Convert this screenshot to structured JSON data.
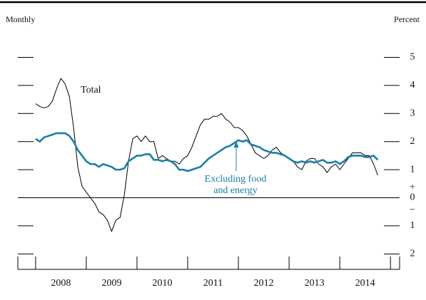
{
  "chart_data": {
    "type": "line",
    "axis_label_left": "Monthly",
    "axis_label_right": "Percent",
    "categories": [
      "2008",
      "2009",
      "2010",
      "2011",
      "2012",
      "2013",
      "2014"
    ],
    "xlim": [
      2007.65,
      2015.18
    ],
    "xticks": [
      2008,
      2009,
      2010,
      2011,
      2012,
      2013,
      2014,
      2015
    ],
    "ylim": [
      -2.55,
      5.5
    ],
    "yticks": [
      {
        "value": -2,
        "label": "2"
      },
      {
        "value": -1,
        "label": "1"
      },
      0,
      1,
      2,
      3,
      4,
      5
    ],
    "sign_labels": [
      "+",
      "−"
    ],
    "x": [
      2008,
      2008.083,
      2008.167,
      2008.25,
      2008.333,
      2008.417,
      2008.5,
      2008.583,
      2008.667,
      2008.75,
      2008.833,
      2008.917,
      2009,
      2009.083,
      2009.167,
      2009.25,
      2009.333,
      2009.417,
      2009.5,
      2009.583,
      2009.667,
      2009.75,
      2009.833,
      2009.917,
      2010,
      2010.083,
      2010.167,
      2010.25,
      2010.333,
      2010.417,
      2010.5,
      2010.583,
      2010.667,
      2010.75,
      2010.833,
      2010.917,
      2011,
      2011.083,
      2011.167,
      2011.25,
      2011.333,
      2011.417,
      2011.5,
      2011.583,
      2011.667,
      2011.75,
      2011.833,
      2011.917,
      2012,
      2012.083,
      2012.167,
      2012.25,
      2012.333,
      2012.417,
      2012.5,
      2012.583,
      2012.667,
      2012.75,
      2012.833,
      2012.917,
      2013,
      2013.083,
      2013.167,
      2013.25,
      2013.333,
      2013.417,
      2013.5,
      2013.583,
      2013.667,
      2013.75,
      2013.833,
      2013.917,
      2014,
      2014.083,
      2014.167,
      2014.25,
      2014.333,
      2014.417,
      2014.5,
      2014.583,
      2014.667,
      2014.75
    ],
    "series": [
      {
        "name": "Total",
        "color": "#000000",
        "width": 1,
        "values": [
          3.35,
          3.25,
          3.2,
          3.25,
          3.45,
          3.9,
          4.25,
          4.05,
          3.6,
          2.5,
          1.1,
          0.4,
          0.2,
          0.0,
          -0.2,
          -0.5,
          -0.6,
          -0.8,
          -1.2,
          -0.8,
          -0.7,
          0.1,
          1.3,
          2.1,
          2.2,
          2.0,
          2.2,
          2.0,
          2.0,
          1.4,
          1.5,
          1.4,
          1.3,
          1.3,
          1.2,
          1.4,
          1.5,
          1.8,
          2.2,
          2.6,
          2.8,
          2.8,
          2.9,
          2.9,
          3.0,
          2.8,
          2.7,
          2.5,
          2.5,
          2.4,
          2.2,
          1.9,
          1.6,
          1.5,
          1.4,
          1.5,
          1.7,
          1.8,
          1.6,
          1.5,
          1.4,
          1.3,
          1.1,
          1.0,
          1.3,
          1.4,
          1.4,
          1.2,
          1.1,
          0.9,
          1.1,
          1.2,
          1.0,
          1.2,
          1.4,
          1.6,
          1.6,
          1.6,
          1.5,
          1.5,
          1.2,
          0.8
        ]
      },
      {
        "name": "Excluding food and energy",
        "color": "#1b7fa6",
        "width": 2.6,
        "values": [
          2.1,
          2.0,
          2.15,
          2.2,
          2.25,
          2.3,
          2.3,
          2.3,
          2.2,
          2.0,
          1.7,
          1.5,
          1.3,
          1.2,
          1.2,
          1.1,
          1.2,
          1.15,
          1.1,
          1.0,
          1.0,
          1.05,
          1.3,
          1.4,
          1.5,
          1.5,
          1.55,
          1.55,
          1.35,
          1.35,
          1.3,
          1.35,
          1.3,
          1.2,
          1.0,
          1.0,
          0.95,
          1.0,
          1.05,
          1.1,
          1.25,
          1.4,
          1.5,
          1.6,
          1.7,
          1.8,
          1.85,
          1.95,
          2.05,
          2.0,
          2.05,
          1.9,
          1.85,
          1.8,
          1.7,
          1.65,
          1.6,
          1.6,
          1.55,
          1.5,
          1.4,
          1.3,
          1.25,
          1.3,
          1.25,
          1.3,
          1.25,
          1.3,
          1.35,
          1.25,
          1.25,
          1.3,
          1.2,
          1.3,
          1.45,
          1.5,
          1.5,
          1.5,
          1.45,
          1.45,
          1.5,
          1.35
        ]
      }
    ],
    "annotations": [
      {
        "text": "Total"
      },
      {
        "text": "Excluding food"
      },
      {
        "text": "and energy"
      }
    ]
  }
}
